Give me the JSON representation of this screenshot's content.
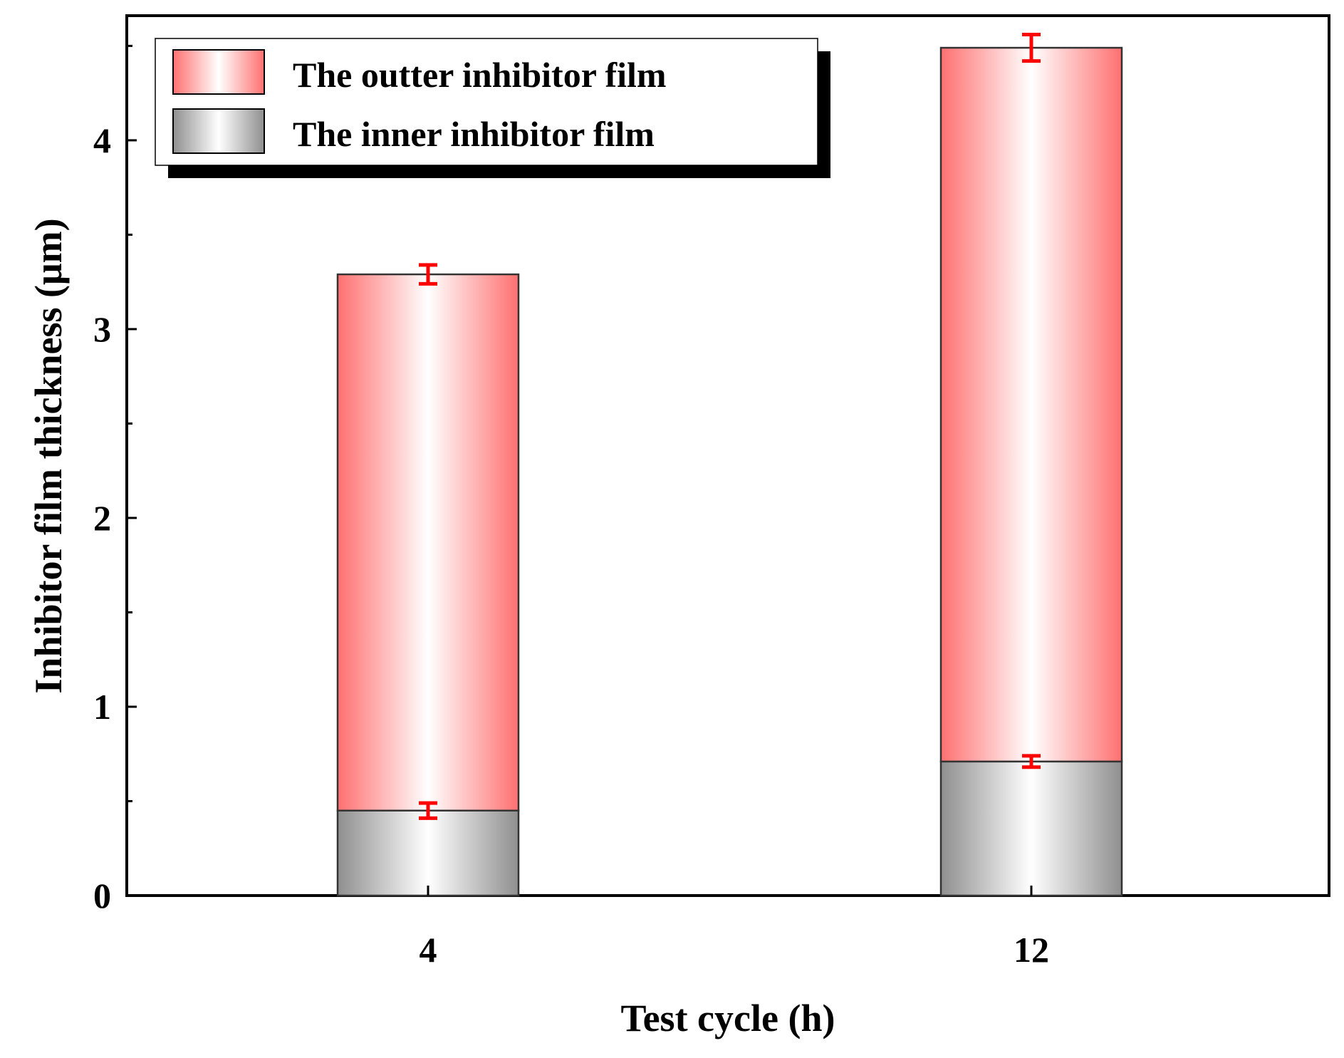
{
  "chart_data": {
    "type": "bar",
    "stacked": true,
    "categories": [
      "4",
      "12"
    ],
    "series": [
      {
        "name": "The inner inhibitor film",
        "values": [
          0.45,
          0.71
        ],
        "errors": [
          0.04,
          0.03
        ],
        "style": "gray-gradient"
      },
      {
        "name": "The outter inhibitor film",
        "values": [
          2.84,
          3.78
        ],
        "errors": [
          0.05,
          0.07
        ],
        "style": "red-gradient"
      }
    ],
    "xlabel": "Test cycle (h)",
    "ylabel": "Inhibitor film thickness (μm)",
    "ylim": [
      0,
      4.66
    ],
    "yticks": [
      "0",
      "1",
      "2",
      "3",
      "4"
    ],
    "grid": false,
    "legend_position": "top-left",
    "colors": {
      "outer_edge": "#ff7070",
      "outer_center": "#ffffff",
      "inner_edge": "#8f8f8f",
      "inner_center": "#ffffff",
      "error_bar": "#ff0000"
    }
  }
}
